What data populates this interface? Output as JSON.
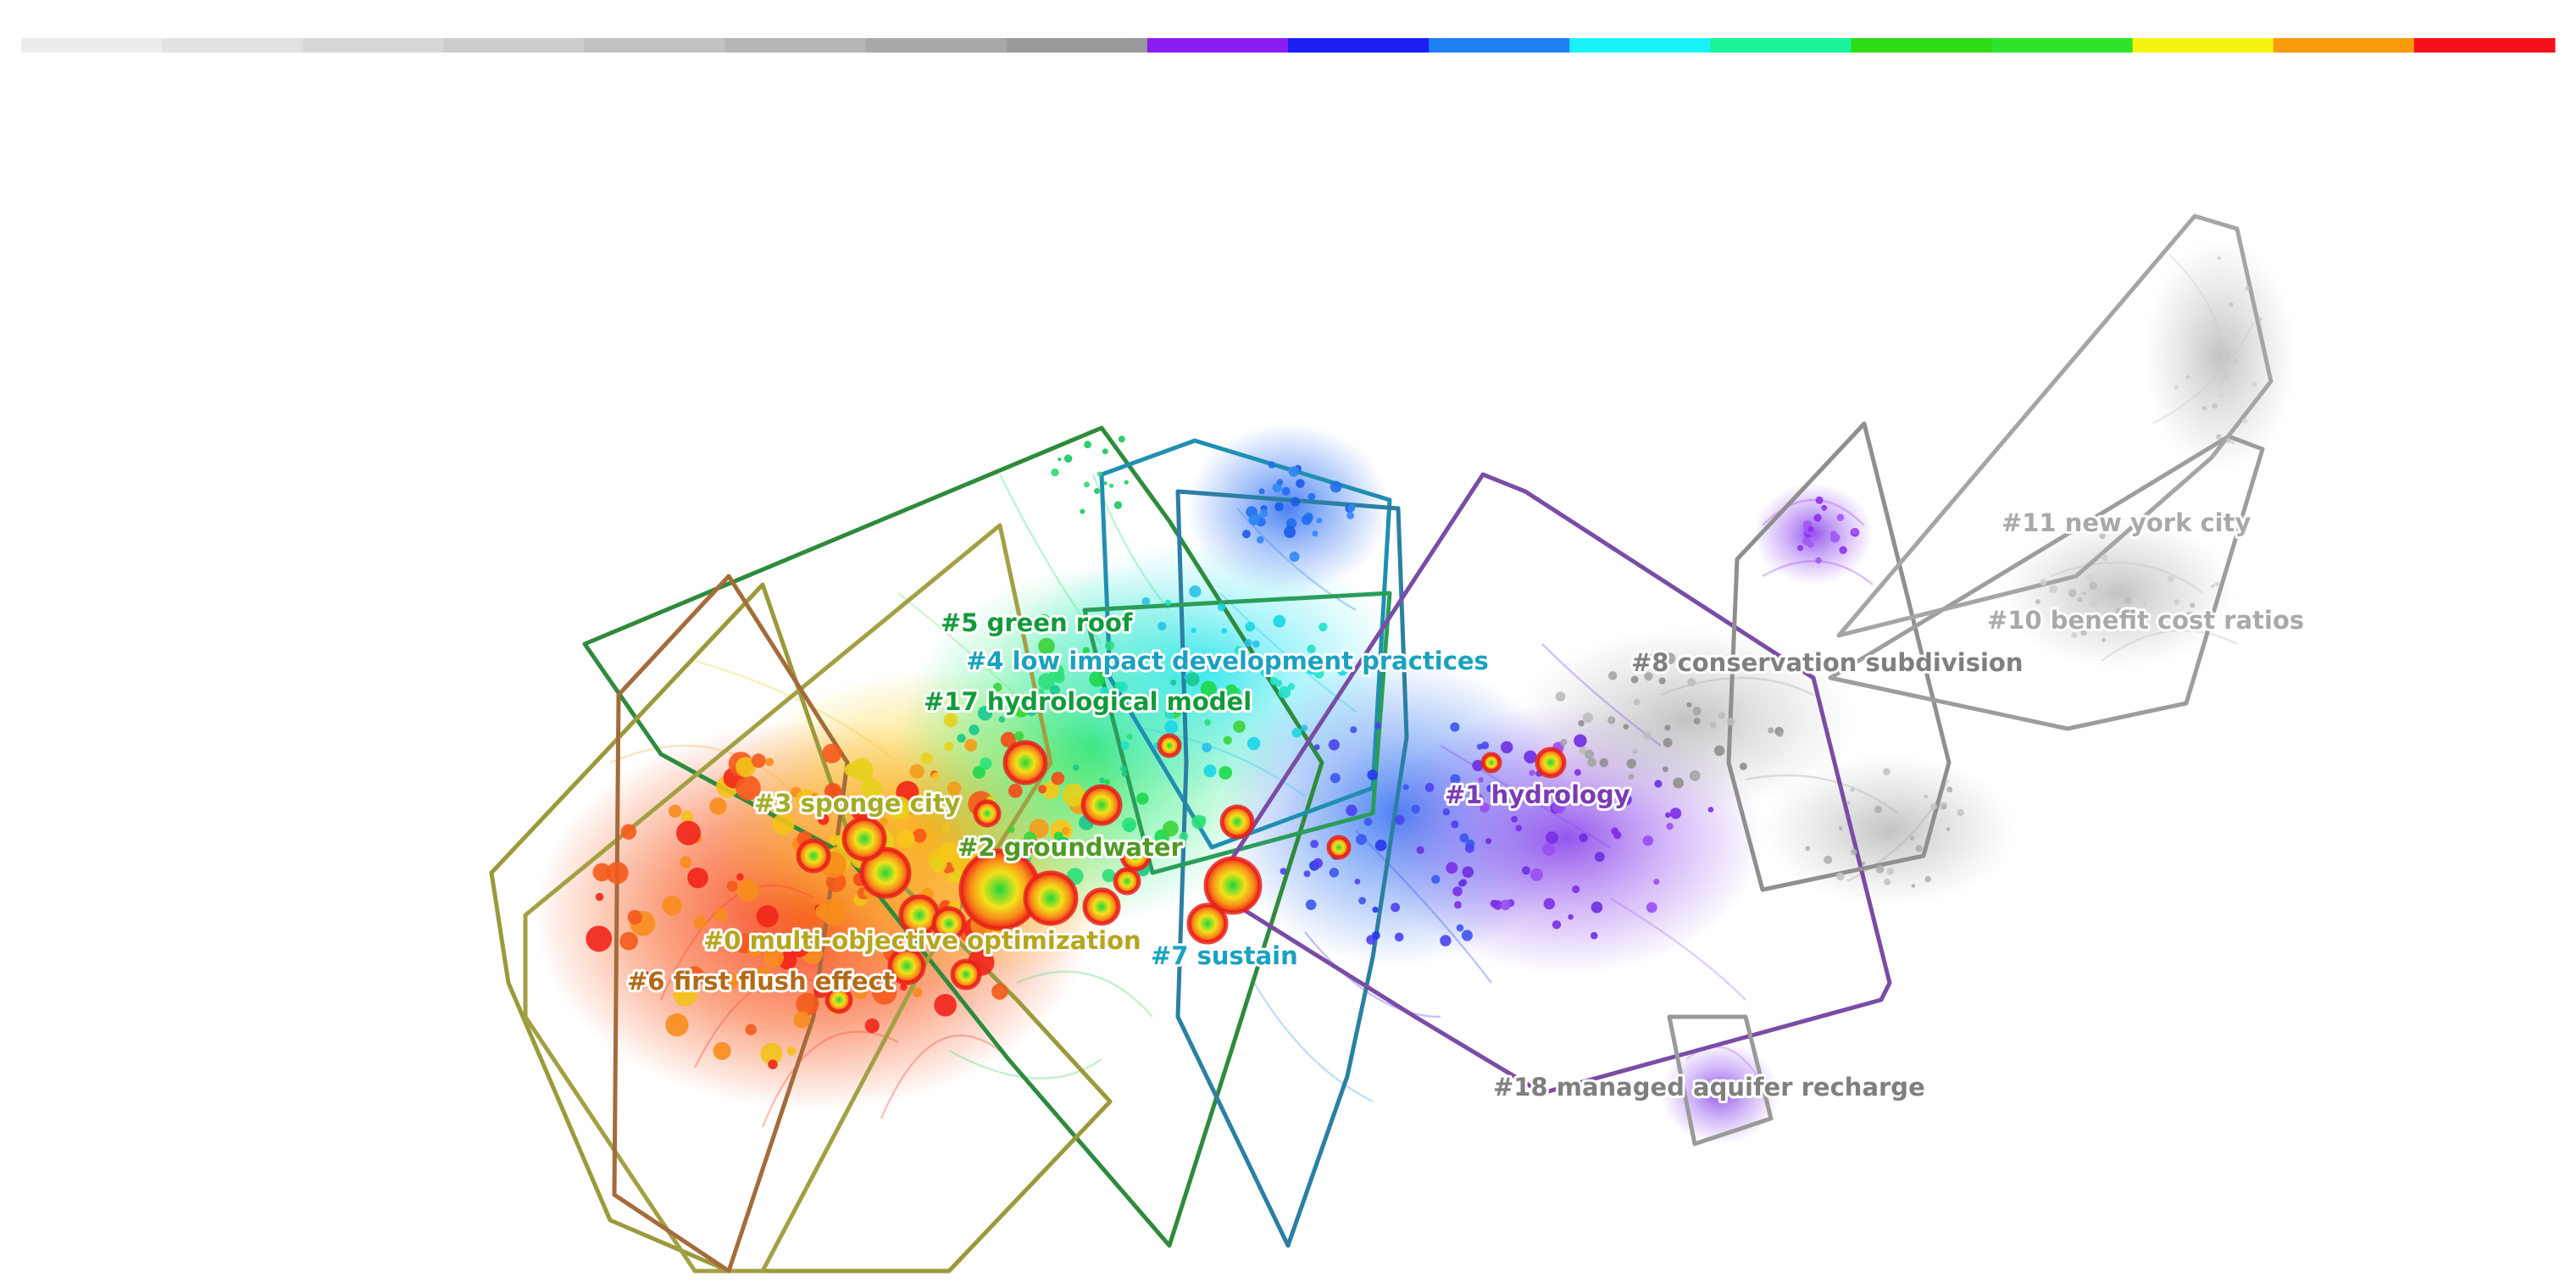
{
  "timeline_bar": {
    "segment_colors": [
      "#ececec",
      "#e2e2e2",
      "#d7d7d7",
      "#cccccc",
      "#c1c1c1",
      "#b5b5b5",
      "#a8a8a8",
      "#9a9a9a",
      "#8c1cf2",
      "#1a1ef0",
      "#1f80f5",
      "#19f1f8",
      "#19f39a",
      "#2ddc14",
      "#2ce52a",
      "#f7f311",
      "#f89a0c",
      "#f7101a"
    ]
  },
  "clusters": [
    {
      "id": "c0",
      "label": "#0 multi-objective optimization",
      "color": "#b6a51e"
    },
    {
      "id": "c1",
      "label": "#1 hydrology",
      "color": "#7a3bb5"
    },
    {
      "id": "c2",
      "label": "#2 groundwater",
      "color": "#4f9a22"
    },
    {
      "id": "c3",
      "label": "#3 sponge city",
      "color": "#a4ac27"
    },
    {
      "id": "c4",
      "label": "#4 low impact development practices",
      "color": "#1aa2c0"
    },
    {
      "id": "c5",
      "label": "#5 green roof",
      "color": "#129b3a"
    },
    {
      "id": "c6",
      "label": "#6 first flush effect",
      "color": "#b26a17"
    },
    {
      "id": "c7",
      "label": "#7 sustain",
      "color": "#1aa2c0"
    },
    {
      "id": "c8",
      "label": "#8 conservation subdivision",
      "color": "#7f7f7f"
    },
    {
      "id": "c10",
      "label": "#10 benefit cost ratios",
      "color": "#a9a9a9"
    },
    {
      "id": "c11",
      "label": "#11 new york city",
      "color": "#a9a9a9"
    },
    {
      "id": "c17",
      "label": "#17 hydrological model",
      "color": "#129b3a"
    },
    {
      "id": "c18",
      "label": "#18 managed aquifer recharge",
      "color": "#7f7f7f"
    }
  ]
}
